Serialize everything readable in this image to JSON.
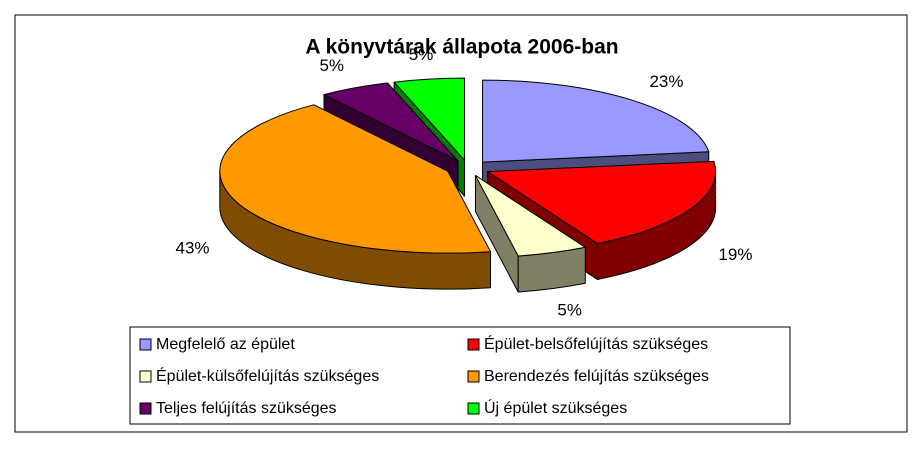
{
  "chart_data": {
    "type": "pie3d",
    "title": "A könyvtárak állapota 2006-ban",
    "categories": [
      "Megfelelő az épület",
      "Épület-belsőfelújítás szükséges",
      "Épület-külsőfelújítás szükséges",
      "Berendezés felújítás szükséges",
      "Teljes felújítás szükséges",
      "Új épület szükséges"
    ],
    "values": [
      23,
      19,
      5,
      43,
      5,
      5
    ],
    "value_labels": [
      "23%",
      "19%",
      "5%",
      "43%",
      "5%",
      "5%"
    ],
    "colors": [
      "#9999ff",
      "#ff0000",
      "#ffffcc",
      "#ff9900",
      "#660066",
      "#00ff00"
    ],
    "legend": "bottom"
  }
}
